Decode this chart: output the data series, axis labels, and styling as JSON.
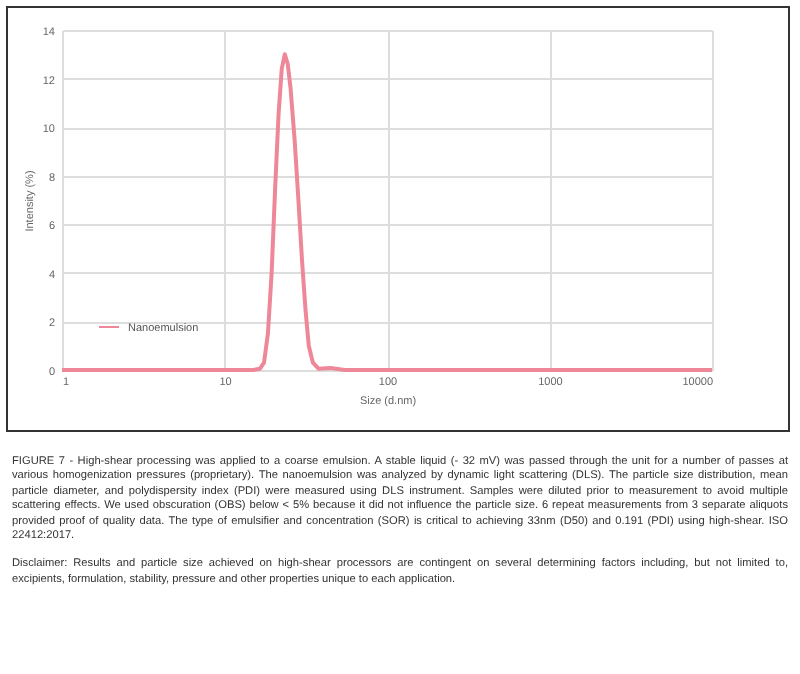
{
  "chart_data": {
    "type": "line",
    "xlabel": "Size (d.nm)",
    "ylabel": "Intensity (%)",
    "x": [
      1,
      15,
      16.5,
      17.5,
      18.5,
      19.5,
      20.5,
      21.5,
      22.5,
      23.5,
      24.5,
      25.5,
      27,
      28.5,
      30,
      31.5,
      33,
      35,
      38,
      45,
      55,
      10000
    ],
    "series": [
      {
        "name": "Nanoemulsion",
        "color": "#ee8899",
        "values": [
          0,
          0,
          0.05,
          0.3,
          1.5,
          4,
          7.5,
          10.5,
          12.4,
          13,
          12.6,
          11.6,
          9.5,
          7,
          4.5,
          2.5,
          1,
          0.3,
          0.05,
          0.08,
          0,
          0
        ]
      }
    ],
    "log": "x",
    "xlim": [
      1,
      10000
    ],
    "xticks": [
      1,
      10,
      100,
      1000,
      10000
    ],
    "ylim": [
      0,
      14
    ],
    "yticks": [
      0,
      2,
      4,
      6,
      8,
      10,
      12,
      14
    ],
    "grid": true,
    "legend": "bottom left",
    "marker": "none",
    "line_style": "solid",
    "annotations": [
      "FIGURE 7 - High-shear processing was applied to a coarse emulsion. A stable liquid (- 32 mV) was passed through the unit for a number of passes at various homogenization pressures (proprietary). The nanoemulsion was analyzed by dynamic light scattering (DLS). The particle size distribution, mean particle diameter, and polydispersity index (PDI) were measured using DLS instrument. Samples were diluted prior to measurement to avoid multiple scattering effects. We used obscuration (OBS) below < 5% because it did not influence the particle size. 6 repeat measurements from 3 separate aliquots provided proof of quality data. The type of emulsifier and concentration (SOR) is critical to achieving 33nm (D50) and 0.191 (PDI) using high-shear. ISO 22412:2017.",
      "Disclaimer: Results and particle size achieved on high-shear processors are contingent on several determining factors including, but not limited to, excipients, formulation, stability, pressure and other properties unique to each application."
    ]
  }
}
